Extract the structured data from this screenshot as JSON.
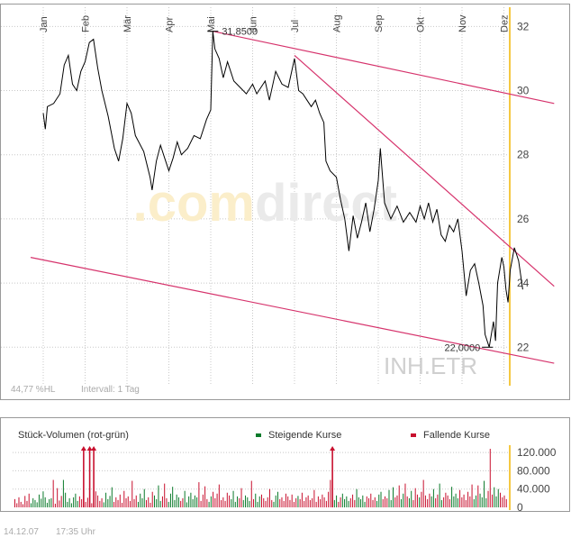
{
  "watermark": {
    "brand_light": ".com",
    "brand_dark": "direct",
    "symbol": "INH.ETR"
  },
  "price_panel": {
    "stat_left": "44,77 %HL",
    "stat_interval": "Intervall: 1 Tag",
    "high_label": "31,8500",
    "low_label": "22,0000"
  },
  "volume_panel": {
    "title": "Stück-Volumen (rot-grün)",
    "legend_up": "Steigende Kurse",
    "legend_down": "Fallende Kurse"
  },
  "footer": {
    "date": "14.12.07",
    "time": "17:35 Uhr"
  },
  "colors": {
    "up": "#0a7a2a",
    "down": "#c8102e",
    "price_line": "#000000",
    "trend": "#d6336c",
    "current": "#f5c842",
    "grid": "#c8c8c8",
    "border": "#999999"
  },
  "chart_data": [
    {
      "type": "line",
      "months": [
        "Jan",
        "Feb",
        "Mär",
        "Apr",
        "Mai",
        "Jun",
        "Jul",
        "Aug",
        "Sep",
        "Okt",
        "Nov",
        "Dez"
      ],
      "yticks": [
        22,
        24,
        26,
        28,
        30,
        32
      ],
      "ylim": [
        20.8,
        32.6
      ],
      "series": [
        {
          "values": [
            {
              "m": 0.0,
              "y": 29.3
            },
            {
              "m": 0.05,
              "y": 28.8
            },
            {
              "m": 0.1,
              "y": 29.5
            },
            {
              "m": 0.25,
              "y": 29.6
            },
            {
              "m": 0.4,
              "y": 29.9
            },
            {
              "m": 0.5,
              "y": 30.8
            },
            {
              "m": 0.6,
              "y": 31.1
            },
            {
              "m": 0.7,
              "y": 30.2
            },
            {
              "m": 0.8,
              "y": 30.0
            },
            {
              "m": 0.9,
              "y": 30.6
            },
            {
              "m": 1.0,
              "y": 30.9
            },
            {
              "m": 1.1,
              "y": 31.5
            },
            {
              "m": 1.2,
              "y": 31.6
            },
            {
              "m": 1.3,
              "y": 30.7
            },
            {
              "m": 1.4,
              "y": 30.0
            },
            {
              "m": 1.55,
              "y": 29.2
            },
            {
              "m": 1.7,
              "y": 28.2
            },
            {
              "m": 1.8,
              "y": 27.8
            },
            {
              "m": 1.9,
              "y": 28.5
            },
            {
              "m": 2.0,
              "y": 29.6
            },
            {
              "m": 2.1,
              "y": 29.3
            },
            {
              "m": 2.2,
              "y": 28.6
            },
            {
              "m": 2.4,
              "y": 28.1
            },
            {
              "m": 2.55,
              "y": 27.3
            },
            {
              "m": 2.6,
              "y": 26.9
            },
            {
              "m": 2.7,
              "y": 27.8
            },
            {
              "m": 2.8,
              "y": 28.3
            },
            {
              "m": 2.9,
              "y": 27.9
            },
            {
              "m": 3.0,
              "y": 27.5
            },
            {
              "m": 3.1,
              "y": 27.9
            },
            {
              "m": 3.2,
              "y": 28.4
            },
            {
              "m": 3.3,
              "y": 28.0
            },
            {
              "m": 3.45,
              "y": 28.2
            },
            {
              "m": 3.6,
              "y": 28.6
            },
            {
              "m": 3.75,
              "y": 28.5
            },
            {
              "m": 3.9,
              "y": 29.1
            },
            {
              "m": 4.0,
              "y": 29.4
            },
            {
              "m": 4.05,
              "y": 31.85
            },
            {
              "m": 4.1,
              "y": 31.3
            },
            {
              "m": 4.2,
              "y": 31.0
            },
            {
              "m": 4.3,
              "y": 30.4
            },
            {
              "m": 4.4,
              "y": 30.9
            },
            {
              "m": 4.55,
              "y": 30.3
            },
            {
              "m": 4.7,
              "y": 30.1
            },
            {
              "m": 4.85,
              "y": 29.9
            },
            {
              "m": 5.0,
              "y": 30.2
            },
            {
              "m": 5.1,
              "y": 29.9
            },
            {
              "m": 5.3,
              "y": 30.3
            },
            {
              "m": 5.4,
              "y": 29.7
            },
            {
              "m": 5.55,
              "y": 30.6
            },
            {
              "m": 5.7,
              "y": 30.2
            },
            {
              "m": 5.85,
              "y": 30.1
            },
            {
              "m": 6.0,
              "y": 31.0
            },
            {
              "m": 6.1,
              "y": 30.0
            },
            {
              "m": 6.2,
              "y": 29.9
            },
            {
              "m": 6.3,
              "y": 29.7
            },
            {
              "m": 6.4,
              "y": 29.5
            },
            {
              "m": 6.5,
              "y": 29.7
            },
            {
              "m": 6.6,
              "y": 29.3
            },
            {
              "m": 6.7,
              "y": 29.0
            },
            {
              "m": 6.75,
              "y": 27.8
            },
            {
              "m": 6.85,
              "y": 27.5
            },
            {
              "m": 7.0,
              "y": 27.3
            },
            {
              "m": 7.1,
              "y": 26.6
            },
            {
              "m": 7.2,
              "y": 26.0
            },
            {
              "m": 7.3,
              "y": 25.0
            },
            {
              "m": 7.4,
              "y": 26.1
            },
            {
              "m": 7.5,
              "y": 25.4
            },
            {
              "m": 7.6,
              "y": 25.9
            },
            {
              "m": 7.7,
              "y": 26.5
            },
            {
              "m": 7.8,
              "y": 25.6
            },
            {
              "m": 7.9,
              "y": 26.3
            },
            {
              "m": 8.0,
              "y": 27.2
            },
            {
              "m": 8.05,
              "y": 28.2
            },
            {
              "m": 8.15,
              "y": 26.5
            },
            {
              "m": 8.3,
              "y": 26.0
            },
            {
              "m": 8.45,
              "y": 26.4
            },
            {
              "m": 8.6,
              "y": 25.9
            },
            {
              "m": 8.75,
              "y": 26.2
            },
            {
              "m": 8.9,
              "y": 25.9
            },
            {
              "m": 9.0,
              "y": 26.4
            },
            {
              "m": 9.1,
              "y": 26.0
            },
            {
              "m": 9.2,
              "y": 26.5
            },
            {
              "m": 9.3,
              "y": 25.9
            },
            {
              "m": 9.4,
              "y": 26.3
            },
            {
              "m": 9.5,
              "y": 25.5
            },
            {
              "m": 9.6,
              "y": 25.3
            },
            {
              "m": 9.7,
              "y": 25.8
            },
            {
              "m": 9.8,
              "y": 25.6
            },
            {
              "m": 9.9,
              "y": 26.0
            },
            {
              "m": 10.0,
              "y": 25.0
            },
            {
              "m": 10.1,
              "y": 23.6
            },
            {
              "m": 10.2,
              "y": 24.4
            },
            {
              "m": 10.3,
              "y": 24.6
            },
            {
              "m": 10.4,
              "y": 24.0
            },
            {
              "m": 10.5,
              "y": 23.3
            },
            {
              "m": 10.55,
              "y": 22.4
            },
            {
              "m": 10.65,
              "y": 22.0
            },
            {
              "m": 10.75,
              "y": 22.8
            },
            {
              "m": 10.8,
              "y": 22.2
            },
            {
              "m": 10.85,
              "y": 24.0
            },
            {
              "m": 10.95,
              "y": 24.8
            },
            {
              "m": 11.0,
              "y": 24.5
            },
            {
              "m": 11.05,
              "y": 23.8
            },
            {
              "m": 11.1,
              "y": 23.4
            },
            {
              "m": 11.15,
              "y": 24.4
            },
            {
              "m": 11.25,
              "y": 25.1
            },
            {
              "m": 11.35,
              "y": 24.7
            },
            {
              "m": 11.45,
              "y": 23.8
            }
          ]
        }
      ],
      "trendlines": [
        {
          "from": {
            "m": -0.3,
            "y": 24.8
          },
          "to": {
            "m": 12.2,
            "y": 21.5
          }
        },
        {
          "from": {
            "m": 4.05,
            "y": 31.85
          },
          "to": {
            "m": 12.2,
            "y": 29.6
          }
        },
        {
          "from": {
            "m": 6.0,
            "y": 31.1
          },
          "to": {
            "m": 12.2,
            "y": 23.9
          }
        }
      ]
    },
    {
      "type": "bar",
      "yticks": [
        0,
        40000,
        80000,
        120000
      ],
      "ytick_labels": [
        "0",
        "40.000",
        "80.000",
        "120.000"
      ],
      "ylim": [
        0,
        132000
      ],
      "volumes": [
        18000,
        9000,
        22000,
        12000,
        7000,
        25000,
        14000,
        30000,
        9000,
        20000,
        16000,
        11000,
        28000,
        19000,
        35000,
        22000,
        10000,
        18000,
        20000,
        60000,
        8000,
        42000,
        15000,
        25000,
        60000,
        32000,
        12000,
        20000,
        9000,
        22000,
        30000,
        14000,
        24000,
        18000,
        40000,
        12000,
        21000,
        28000,
        9000,
        16000,
        35000,
        26000,
        14000,
        20000,
        11000,
        32000,
        18000,
        25000,
        44000,
        12000,
        22000,
        16000,
        28000,
        10000,
        36000,
        20000,
        24000,
        14000,
        58000,
        18000,
        26000,
        12000,
        30000,
        20000,
        40000,
        16000,
        22000,
        10000,
        34000,
        26000,
        18000,
        48000,
        14000,
        24000,
        52000,
        20000,
        12000,
        30000,
        45000,
        16000,
        28000,
        22000,
        14000,
        20000,
        36000,
        11000,
        24000,
        32000,
        18000,
        26000,
        22000,
        55000,
        14000,
        28000,
        46000,
        18000,
        12000,
        24000,
        34000,
        20000,
        30000,
        50000,
        16000,
        22000,
        14000,
        32000,
        26000,
        18000,
        36000,
        12000,
        24000,
        20000,
        42000,
        16000,
        26000,
        22000,
        14000,
        58000,
        18000,
        30000,
        12000,
        24000,
        28000,
        20000,
        14000,
        22000,
        40000,
        16000,
        12000,
        26000,
        34000,
        18000,
        22000,
        14000,
        30000,
        24000,
        16000,
        28000,
        12000,
        20000,
        25000,
        18000,
        32000,
        14000,
        22000,
        26000,
        16000,
        20000,
        38000,
        12000,
        24000,
        18000,
        28000,
        22000,
        14000,
        34000,
        60000,
        20000,
        16000,
        26000,
        12000,
        22000,
        30000,
        18000,
        24000,
        14000,
        20000,
        28000,
        16000,
        40000,
        22000,
        18000,
        26000,
        12000,
        24000,
        20000,
        30000,
        16000,
        22000,
        14000,
        28000,
        34000,
        18000,
        24000,
        20000,
        38000,
        16000,
        44000,
        22000,
        26000,
        48000,
        18000,
        30000,
        52000,
        24000,
        20000,
        36000,
        16000,
        42000,
        28000,
        22000,
        34000,
        60000,
        26000,
        18000,
        30000,
        24000,
        40000,
        20000,
        28000,
        52000,
        16000,
        22000,
        32000,
        26000,
        18000,
        45000,
        24000,
        30000,
        20000,
        38000,
        22000,
        28000,
        16000,
        34000,
        24000,
        50000,
        18000,
        26000,
        48000,
        30000,
        22000,
        58000,
        20000,
        36000,
        128000,
        28000,
        44000,
        24000,
        40000,
        32000,
        22000,
        26000,
        18000
      ],
      "clipped_markers": [
        {
          "index": 34,
          "direction": "down"
        },
        {
          "index": 37,
          "direction": "down"
        },
        {
          "index": 39,
          "direction": "down"
        },
        {
          "index": 157,
          "direction": "down"
        }
      ]
    }
  ]
}
